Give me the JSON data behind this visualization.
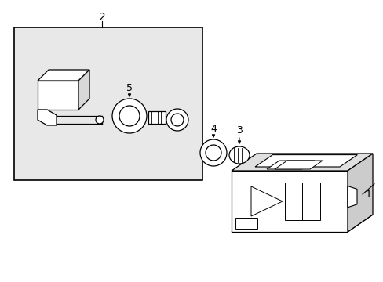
{
  "bg_color": "#ffffff",
  "line_color": "#000000",
  "box_bg": "#e8e8e8",
  "label_color": "#000000",
  "figsize": [
    4.89,
    3.6
  ],
  "dpi": 100
}
